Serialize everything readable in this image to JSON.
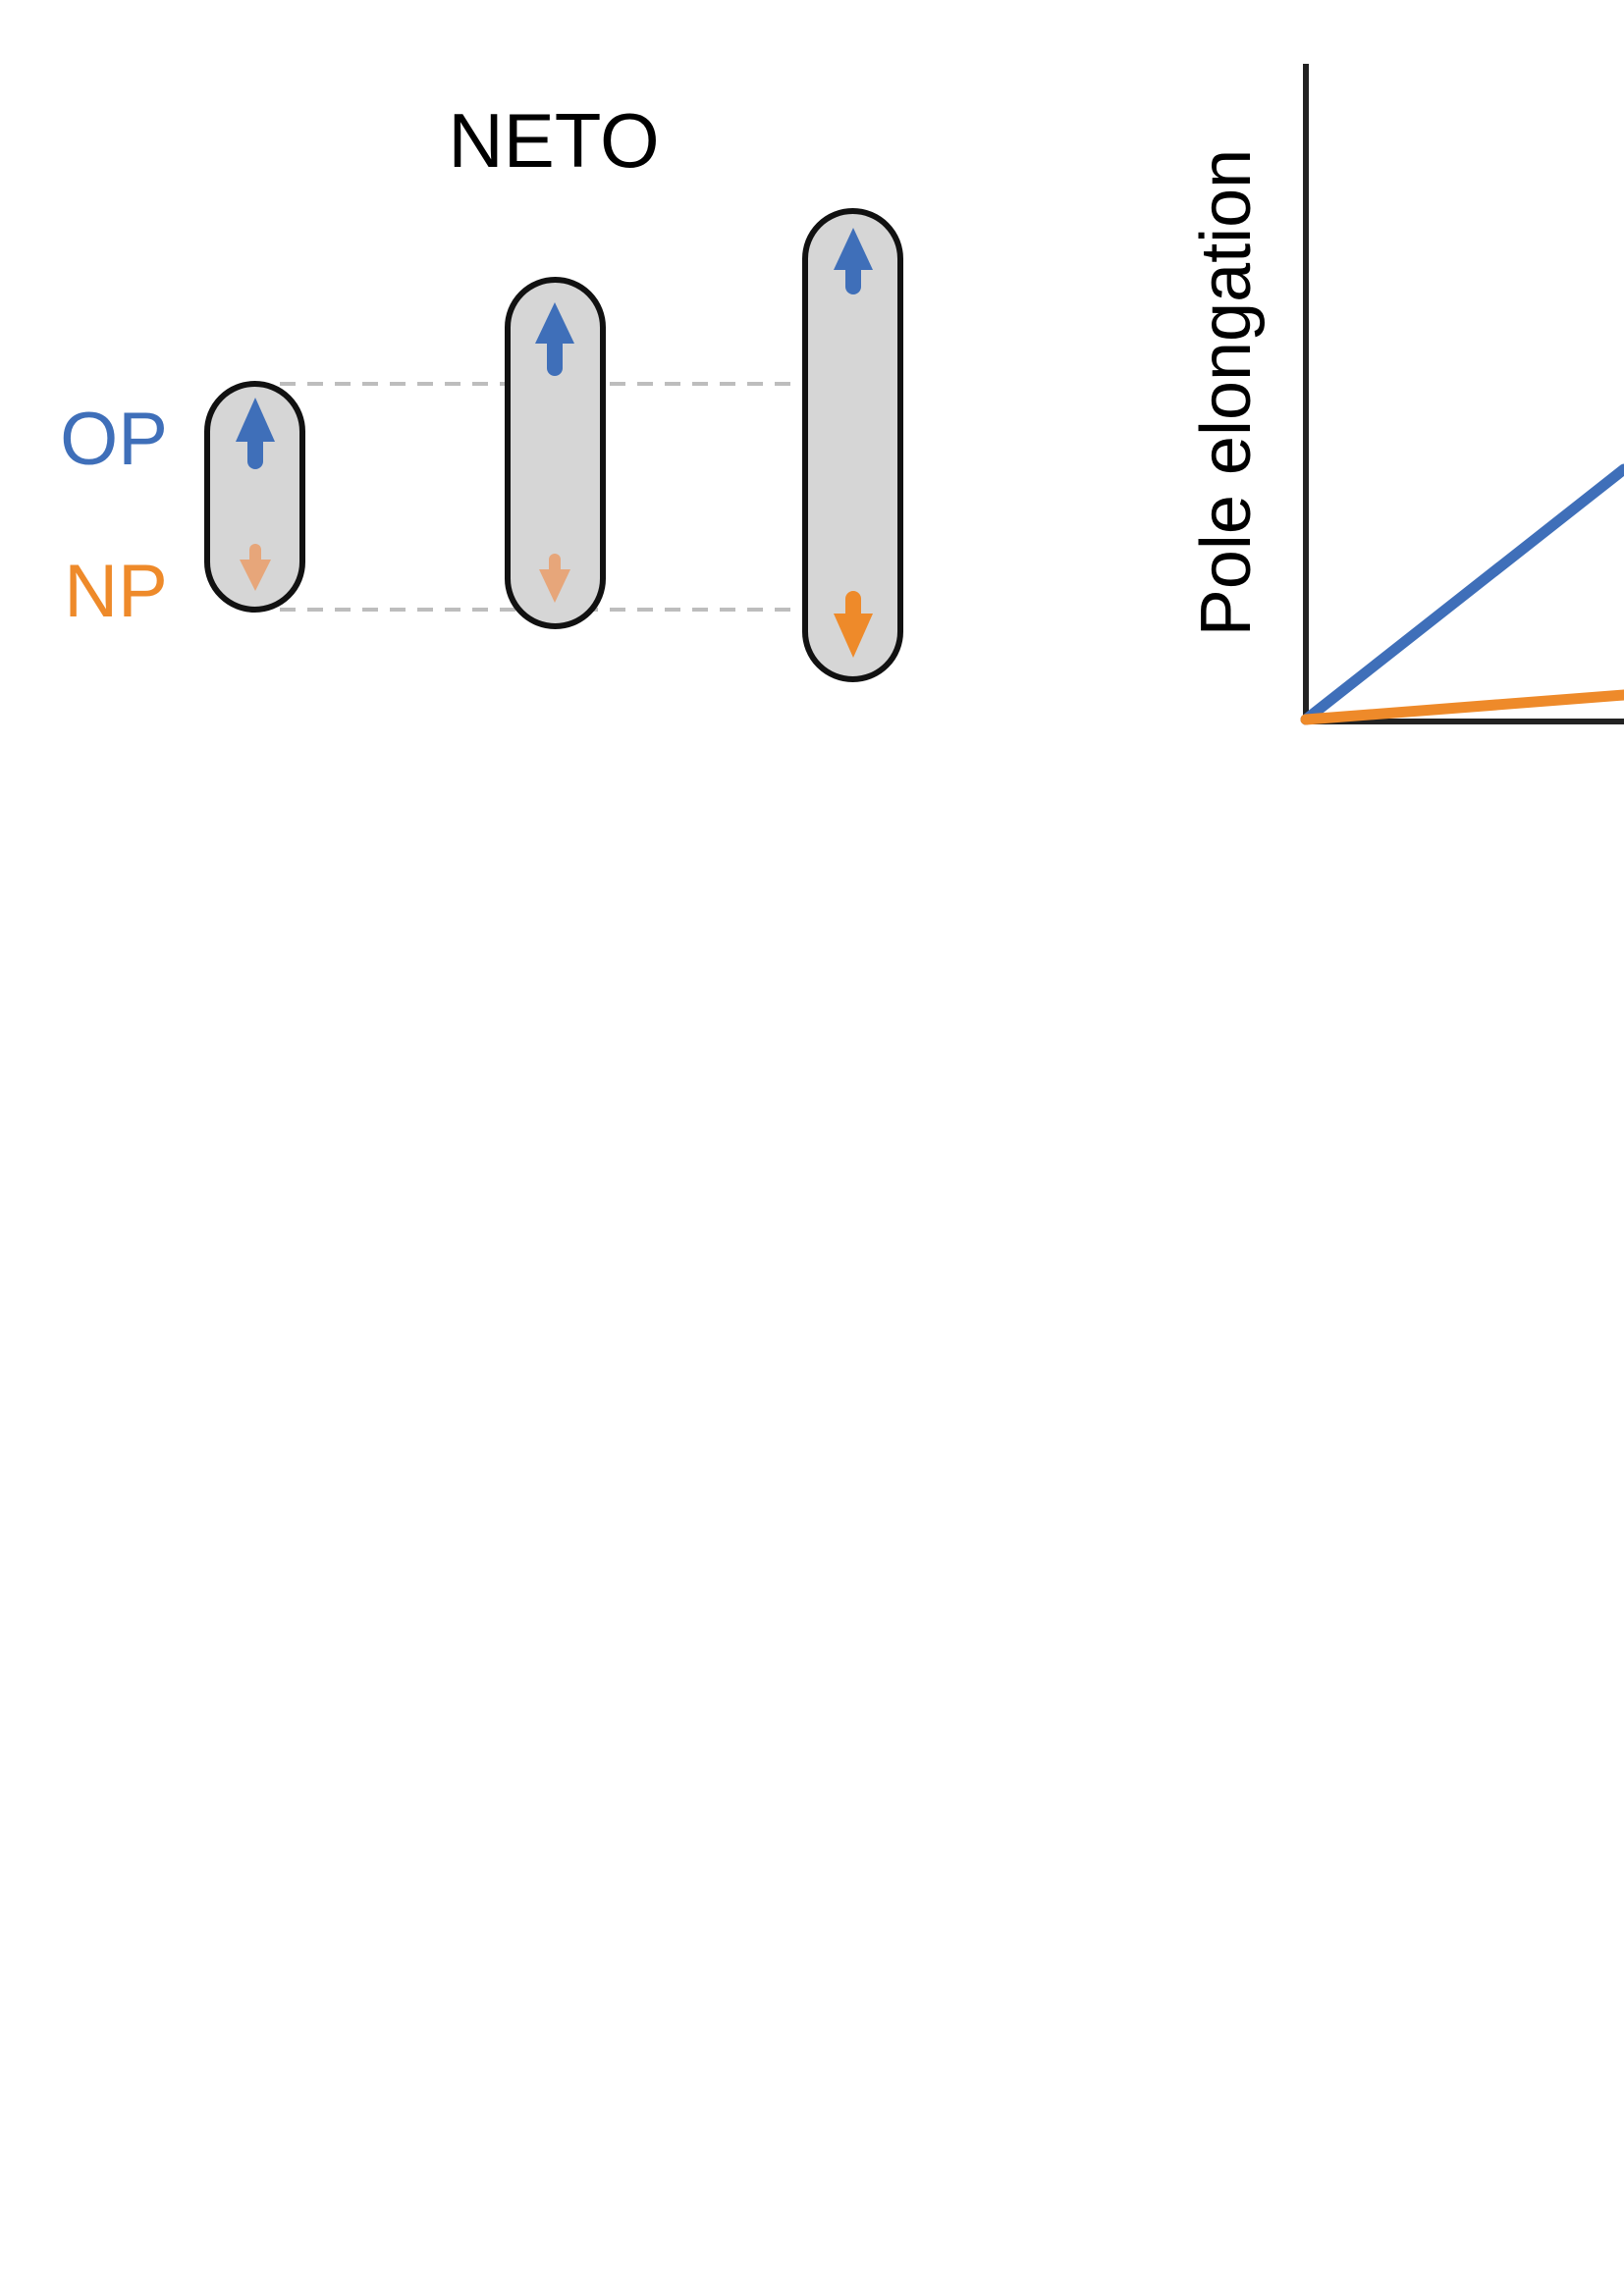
{
  "title": "NETO",
  "labels": {
    "op": "OP",
    "np": "NP"
  },
  "colors": {
    "op": "#3f6fb9",
    "np": "#ee8a2a",
    "np_faded": "#e7a67a",
    "cell_fill": "#d6d6d6",
    "cell_stroke": "#111111",
    "guide": "#bdbdbd",
    "axis": "#222222"
  },
  "icons": {
    "op_growth": "arrow-up-icon",
    "np_growth": "arrow-down-icon"
  },
  "graph": {
    "ylabel": "Pole elongation",
    "series": [
      {
        "key": "op"
      },
      {
        "key": "np"
      }
    ]
  }
}
